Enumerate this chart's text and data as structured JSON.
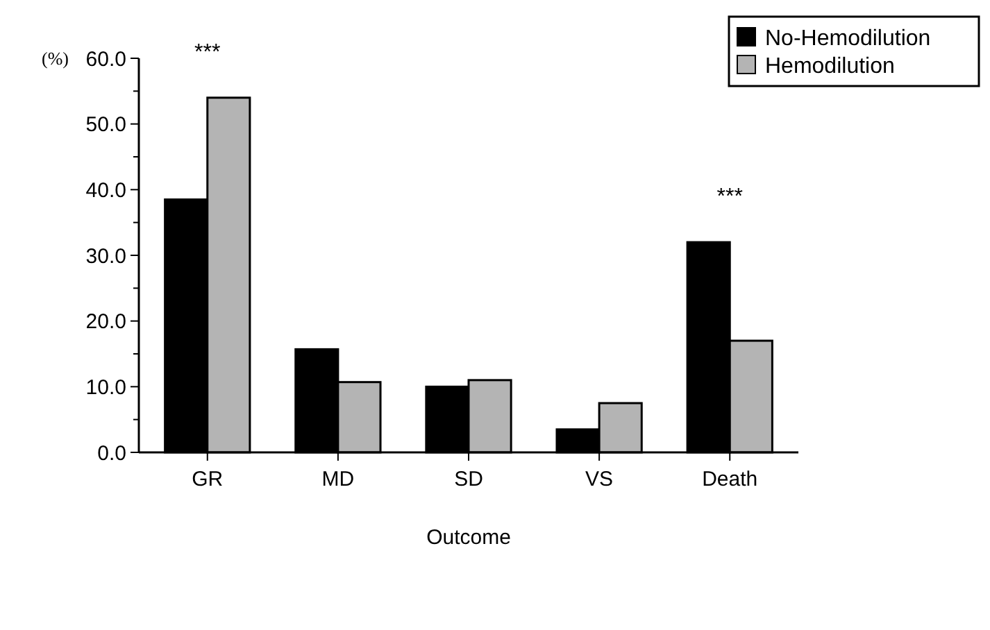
{
  "chart_data": {
    "type": "bar",
    "ylabel": "(%)",
    "xlabel": "Outcome",
    "categories": [
      "GR",
      "MD",
      "SD",
      "VS",
      "Death"
    ],
    "series": [
      {
        "name": "No-Hemodilution",
        "color": "#000000",
        "values": [
          38.5,
          15.7,
          10,
          3.5,
          32
        ]
      },
      {
        "name": "Hemodilution",
        "color": "#b4b4b4",
        "values": [
          54,
          10.7,
          11,
          7.5,
          17
        ]
      }
    ],
    "ylim": [
      0,
      60
    ],
    "yticks": [
      {
        "value": 0,
        "label": "0.0"
      },
      {
        "value": 5,
        "label": null
      },
      {
        "value": 10,
        "label": "10.0"
      },
      {
        "value": 15,
        "label": null
      },
      {
        "value": 20,
        "label": "20.0"
      },
      {
        "value": 25,
        "label": null
      },
      {
        "value": 30,
        "label": "30.0"
      },
      {
        "value": 35,
        "label": null
      },
      {
        "value": 40,
        "label": "40.0"
      },
      {
        "value": 45,
        "label": null
      },
      {
        "value": 50,
        "label": "50.0"
      },
      {
        "value": 55,
        "label": null
      },
      {
        "value": 60,
        "label": "60.0"
      }
    ],
    "annotations": [
      "***",
      "***"
    ],
    "legend": "top right",
    "grid": false
  }
}
